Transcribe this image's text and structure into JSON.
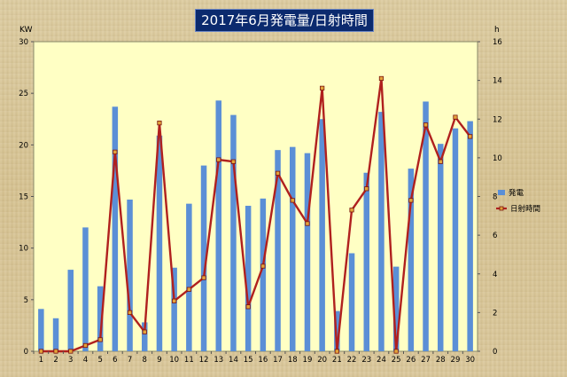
{
  "chart_data": {
    "type": "bar",
    "title": "2017年6月発電量/日射時間",
    "left_unit": "KW",
    "right_unit": "h",
    "categories": [
      "1",
      "2",
      "3",
      "4",
      "5",
      "6",
      "7",
      "8",
      "9",
      "10",
      "11",
      "12",
      "13",
      "14",
      "15",
      "16",
      "17",
      "18",
      "19",
      "20",
      "21",
      "22",
      "23",
      "24",
      "25",
      "26",
      "27",
      "28",
      "29",
      "30"
    ],
    "ylim_left": [
      0,
      30
    ],
    "ylim_right": [
      0,
      16
    ],
    "yticks_left": [
      "0",
      "5",
      "10",
      "15",
      "20",
      "25",
      "30"
    ],
    "yticks_right": [
      "0",
      "2",
      "4",
      "6",
      "8",
      "10",
      "12",
      "14",
      "16"
    ],
    "legend_position": "right",
    "grid": false,
    "series": [
      {
        "name": "発電",
        "axis": "left",
        "kind": "bar",
        "color": "#5b8fd6",
        "values": [
          4.1,
          3.2,
          7.9,
          12.0,
          6.3,
          23.7,
          14.7,
          2.8,
          20.9,
          8.1,
          14.3,
          18.0,
          24.3,
          22.9,
          14.1,
          14.8,
          19.5,
          19.8,
          19.2,
          22.5,
          3.9,
          9.5,
          17.3,
          23.2,
          8.2,
          17.7,
          24.2,
          20.1,
          21.6,
          22.3
        ]
      },
      {
        "name": "日射時間",
        "axis": "right",
        "kind": "line",
        "color": "#b0201e",
        "values": [
          0.0,
          0.0,
          0.0,
          0.3,
          0.6,
          10.3,
          2.0,
          1.0,
          11.8,
          2.6,
          3.2,
          3.8,
          9.9,
          9.8,
          2.3,
          4.4,
          9.2,
          7.8,
          6.6,
          13.6,
          0.0,
          7.3,
          8.4,
          14.1,
          0.0,
          7.8,
          11.7,
          9.8,
          12.1,
          11.1
        ]
      }
    ]
  }
}
